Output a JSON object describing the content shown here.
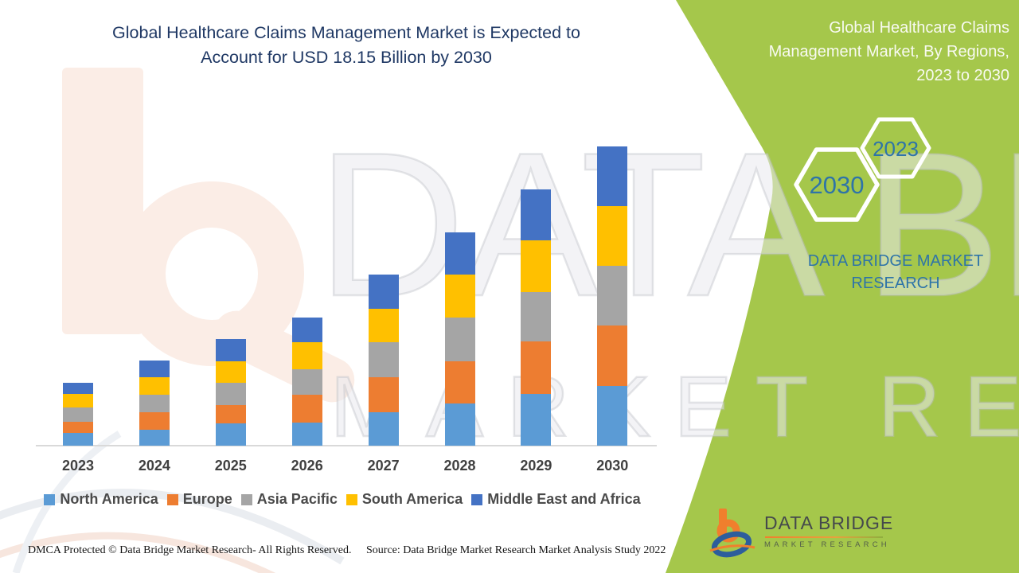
{
  "main_title": {
    "line1": "Global Healthcare Claims Management Market is Expected to",
    "line2": "Account for USD 18.15 Billion by 2030"
  },
  "side_panel": {
    "title_lines": [
      "Global Healthcare Claims",
      "Management Market, By Regions,",
      "2023 to 2030"
    ],
    "hexagons": [
      {
        "label": "2030"
      },
      {
        "label": "2023"
      }
    ],
    "brand_line1": "DATA BRIDGE MARKET",
    "brand_line2": "RESEARCH",
    "panel_color": "#A5C74B",
    "text_color": "#2E74A8"
  },
  "watermark": {
    "line1": "DATA BRIDGE",
    "line2": "MARKET RESEARCH"
  },
  "chart_data": {
    "type": "bar",
    "stacked": true,
    "title": "Global Healthcare Claims Management Market is Expected to Account for USD 18.15 Billion by 2030",
    "unit": "USD Billion",
    "categories": [
      "2023",
      "2024",
      "2025",
      "2026",
      "2027",
      "2028",
      "2029",
      "2030"
    ],
    "series": [
      {
        "name": "North America",
        "color": "#5B9BD5",
        "values": [
          0.75,
          0.97,
          1.34,
          1.41,
          2.05,
          2.58,
          3.12,
          3.62
        ]
      },
      {
        "name": "Europe",
        "color": "#ED7D31",
        "values": [
          0.72,
          1.05,
          1.13,
          1.66,
          2.1,
          2.54,
          3.19,
          3.66
        ]
      },
      {
        "name": "Asia Pacific",
        "color": "#A5A5A5",
        "values": [
          0.85,
          1.05,
          1.36,
          1.55,
          2.12,
          2.65,
          3.01,
          3.64
        ]
      },
      {
        "name": "South America",
        "color": "#FFC000",
        "values": [
          0.8,
          1.08,
          1.29,
          1.65,
          2.04,
          2.6,
          3.15,
          3.64
        ]
      },
      {
        "name": "Middle East and Africa",
        "color": "#4472C4",
        "values": [
          0.72,
          1.02,
          1.34,
          1.5,
          2.07,
          2.58,
          3.07,
          3.59
        ]
      }
    ],
    "totals": [
      3.84,
      5.17,
      6.46,
      7.77,
      10.38,
      12.95,
      15.54,
      18.15
    ],
    "ylim": [
      0,
      18.15
    ],
    "y_axis_visible": false,
    "grid": false,
    "legend_position": "bottom",
    "annotation": "2030 total = USD 18.15 Billion"
  },
  "footer": {
    "dmca": "DMCA Protected © Data Bridge Market Research- All Rights Reserved.",
    "source": "Source: Data Bridge Market Research Market Analysis Study 2022"
  },
  "logo": {
    "name": "DATA BRIDGE",
    "subname": "MARKET RESEARCH"
  },
  "colors": {
    "title_navy": "#1F3864",
    "axis_line": "#D9D9D9",
    "tick_text": "#404040",
    "panel_green": "#A5C74B",
    "hex_outline": "#FFFFFF"
  }
}
